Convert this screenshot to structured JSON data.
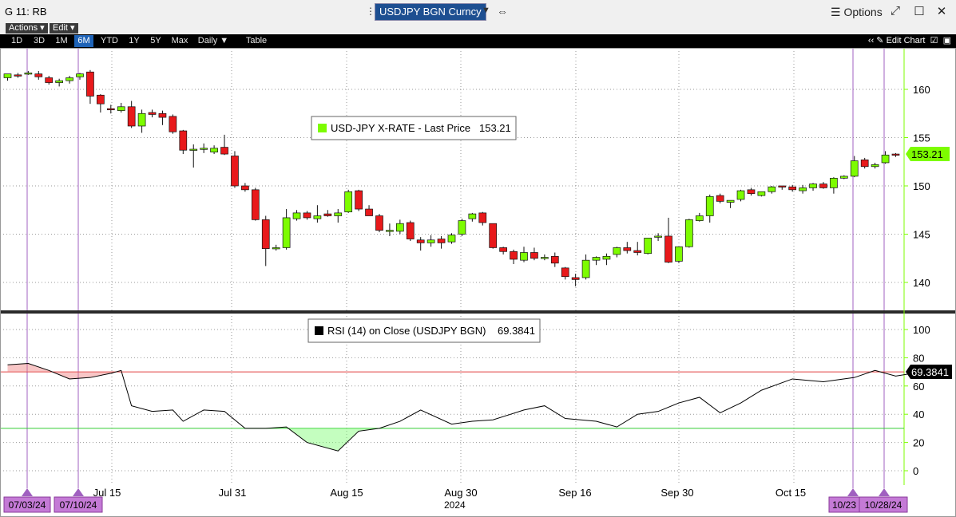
{
  "window": {
    "title": "G 11: RB",
    "ticker": "USDJPY BGN Curncy",
    "options_label": "Options"
  },
  "menu": {
    "actions_label": "Actions ▾",
    "edit_label": "Edit ▾"
  },
  "toolbar": {
    "ranges": [
      "1D",
      "3D",
      "1M",
      "6M",
      "YTD",
      "1Y",
      "5Y",
      "Max"
    ],
    "active_range": "6M",
    "period_label": "Daily ▼",
    "table_label": "Table",
    "edit_chart_label": "Edit Chart"
  },
  "colors": {
    "up": "#7dfc00",
    "down": "#e8191b",
    "rsi_line": "#000000",
    "overbought": "#e04040",
    "oversold": "#33cc33",
    "event_line": "#a060c0"
  },
  "price_panel": {
    "legend_label": "USD-JPY X-RATE - Last Price",
    "legend_value": "153.21",
    "last_price_tag": "153.21",
    "y_ticks": [
      140,
      145,
      150,
      155,
      160
    ]
  },
  "rsi_panel": {
    "legend_label": "RSI (14) on Close (USDJPY BGN)",
    "legend_value": "69.3841",
    "last_value_tag": "69.3841",
    "y_ticks": [
      0,
      20,
      40,
      60,
      80,
      100
    ],
    "overbought": 70,
    "oversold": 30
  },
  "x_axis": {
    "labels": [
      "Jul 15",
      "Jul 31",
      "Aug 15",
      "Aug 30",
      "Sep 16",
      "Sep 30",
      "Oct 15"
    ],
    "year_label": "2024",
    "event_flags": [
      "07/03/24",
      "07/10/24",
      "10/23",
      "10/28/24"
    ]
  },
  "chart_data": {
    "type": "candlestick",
    "title": "USD-JPY X-RATE - Last Price",
    "ylim": [
      137,
      164
    ],
    "candles": [
      {
        "o": 161.2,
        "h": 161.6,
        "l": 160.9,
        "c": 161.6
      },
      {
        "o": 161.5,
        "h": 161.7,
        "l": 161.2,
        "c": 161.4
      },
      {
        "o": 161.6,
        "h": 161.9,
        "l": 161.5,
        "c": 161.7
      },
      {
        "o": 161.6,
        "h": 161.9,
        "l": 161.0,
        "c": 161.3
      },
      {
        "o": 161.2,
        "h": 161.4,
        "l": 160.5,
        "c": 160.7
      },
      {
        "o": 160.7,
        "h": 161.1,
        "l": 160.3,
        "c": 160.9
      },
      {
        "o": 160.9,
        "h": 161.4,
        "l": 160.6,
        "c": 161.2
      },
      {
        "o": 161.3,
        "h": 161.7,
        "l": 161.0,
        "c": 161.6
      },
      {
        "o": 161.8,
        "h": 162.0,
        "l": 158.5,
        "c": 159.3
      },
      {
        "o": 159.4,
        "h": 159.5,
        "l": 157.6,
        "c": 158.5
      },
      {
        "o": 158.0,
        "h": 158.4,
        "l": 157.5,
        "c": 157.9
      },
      {
        "o": 157.8,
        "h": 158.6,
        "l": 157.6,
        "c": 158.2
      },
      {
        "o": 158.2,
        "h": 158.8,
        "l": 156.0,
        "c": 156.2
      },
      {
        "o": 156.2,
        "h": 157.9,
        "l": 155.5,
        "c": 157.5
      },
      {
        "o": 157.6,
        "h": 157.9,
        "l": 157.1,
        "c": 157.4
      },
      {
        "o": 157.5,
        "h": 157.8,
        "l": 156.3,
        "c": 157.1
      },
      {
        "o": 157.2,
        "h": 157.4,
        "l": 155.4,
        "c": 155.6
      },
      {
        "o": 155.7,
        "h": 155.8,
        "l": 153.3,
        "c": 153.7
      },
      {
        "o": 153.7,
        "h": 154.3,
        "l": 151.9,
        "c": 153.8
      },
      {
        "o": 153.8,
        "h": 154.4,
        "l": 153.4,
        "c": 153.9
      },
      {
        "o": 153.5,
        "h": 154.2,
        "l": 153.3,
        "c": 153.9
      },
      {
        "o": 154.0,
        "h": 155.3,
        "l": 153.2,
        "c": 153.3
      },
      {
        "o": 153.1,
        "h": 153.6,
        "l": 149.8,
        "c": 150.0
      },
      {
        "o": 150.0,
        "h": 150.3,
        "l": 149.4,
        "c": 149.6
      },
      {
        "o": 149.6,
        "h": 149.8,
        "l": 146.4,
        "c": 146.5
      },
      {
        "o": 146.5,
        "h": 146.9,
        "l": 141.7,
        "c": 143.5
      },
      {
        "o": 143.5,
        "h": 143.9,
        "l": 143.3,
        "c": 143.6
      },
      {
        "o": 143.6,
        "h": 147.6,
        "l": 143.4,
        "c": 146.7
      },
      {
        "o": 146.6,
        "h": 147.5,
        "l": 146.4,
        "c": 147.2
      },
      {
        "o": 147.2,
        "h": 147.4,
        "l": 146.5,
        "c": 146.7
      },
      {
        "o": 146.6,
        "h": 148.0,
        "l": 146.2,
        "c": 146.9
      },
      {
        "o": 147.1,
        "h": 147.5,
        "l": 146.8,
        "c": 146.9
      },
      {
        "o": 146.9,
        "h": 147.6,
        "l": 146.2,
        "c": 147.2
      },
      {
        "o": 147.3,
        "h": 149.6,
        "l": 147.2,
        "c": 149.4
      },
      {
        "o": 149.5,
        "h": 149.6,
        "l": 147.4,
        "c": 147.6
      },
      {
        "o": 147.6,
        "h": 148.0,
        "l": 146.9,
        "c": 146.9
      },
      {
        "o": 146.9,
        "h": 147.1,
        "l": 145.2,
        "c": 145.4
      },
      {
        "o": 145.4,
        "h": 146.1,
        "l": 144.8,
        "c": 145.4
      },
      {
        "o": 145.3,
        "h": 146.5,
        "l": 145.0,
        "c": 146.1
      },
      {
        "o": 146.2,
        "h": 146.4,
        "l": 144.3,
        "c": 144.5
      },
      {
        "o": 144.4,
        "h": 144.7,
        "l": 143.3,
        "c": 144.1
      },
      {
        "o": 144.1,
        "h": 144.9,
        "l": 143.7,
        "c": 144.4
      },
      {
        "o": 144.5,
        "h": 144.8,
        "l": 143.5,
        "c": 144.1
      },
      {
        "o": 144.2,
        "h": 145.1,
        "l": 144.0,
        "c": 144.9
      },
      {
        "o": 145.0,
        "h": 146.6,
        "l": 144.8,
        "c": 146.4
      },
      {
        "o": 146.6,
        "h": 147.2,
        "l": 146.3,
        "c": 147.1
      },
      {
        "o": 147.2,
        "h": 147.3,
        "l": 145.9,
        "c": 146.2
      },
      {
        "o": 146.1,
        "h": 146.1,
        "l": 143.5,
        "c": 143.6
      },
      {
        "o": 143.6,
        "h": 143.7,
        "l": 142.9,
        "c": 143.2
      },
      {
        "o": 143.2,
        "h": 143.4,
        "l": 141.9,
        "c": 142.4
      },
      {
        "o": 142.3,
        "h": 143.7,
        "l": 142.1,
        "c": 143.1
      },
      {
        "o": 143.1,
        "h": 143.6,
        "l": 142.3,
        "c": 142.5
      },
      {
        "o": 142.6,
        "h": 142.9,
        "l": 142.3,
        "c": 142.6
      },
      {
        "o": 142.7,
        "h": 143.1,
        "l": 141.6,
        "c": 142.0
      },
      {
        "o": 141.5,
        "h": 141.6,
        "l": 140.3,
        "c": 140.6
      },
      {
        "o": 140.5,
        "h": 140.9,
        "l": 139.6,
        "c": 140.3
      },
      {
        "o": 140.5,
        "h": 142.9,
        "l": 140.3,
        "c": 142.3
      },
      {
        "o": 142.3,
        "h": 142.7,
        "l": 141.8,
        "c": 142.6
      },
      {
        "o": 142.4,
        "h": 143.0,
        "l": 141.8,
        "c": 142.7
      },
      {
        "o": 142.9,
        "h": 143.7,
        "l": 142.6,
        "c": 143.6
      },
      {
        "o": 143.6,
        "h": 144.2,
        "l": 143.0,
        "c": 143.3
      },
      {
        "o": 143.3,
        "h": 144.2,
        "l": 142.8,
        "c": 143.1
      },
      {
        "o": 143.0,
        "h": 144.6,
        "l": 142.9,
        "c": 144.6
      },
      {
        "o": 144.7,
        "h": 145.1,
        "l": 144.3,
        "c": 144.8
      },
      {
        "o": 144.8,
        "h": 146.7,
        "l": 142.0,
        "c": 142.1
      },
      {
        "o": 142.2,
        "h": 143.7,
        "l": 142.0,
        "c": 143.7
      },
      {
        "o": 143.7,
        "h": 146.6,
        "l": 143.6,
        "c": 146.5
      },
      {
        "o": 146.4,
        "h": 147.2,
        "l": 146.3,
        "c": 146.9
      },
      {
        "o": 146.9,
        "h": 149.1,
        "l": 146.2,
        "c": 148.9
      },
      {
        "o": 149.0,
        "h": 149.2,
        "l": 148.2,
        "c": 148.4
      },
      {
        "o": 148.3,
        "h": 148.5,
        "l": 147.7,
        "c": 148.5
      },
      {
        "o": 148.6,
        "h": 149.6,
        "l": 148.4,
        "c": 149.5
      },
      {
        "o": 149.6,
        "h": 149.8,
        "l": 149.0,
        "c": 149.2
      },
      {
        "o": 149.0,
        "h": 149.4,
        "l": 148.9,
        "c": 149.4
      },
      {
        "o": 149.4,
        "h": 150.0,
        "l": 149.2,
        "c": 149.9
      },
      {
        "o": 150.0,
        "h": 150.0,
        "l": 149.6,
        "c": 149.9
      },
      {
        "o": 149.9,
        "h": 150.1,
        "l": 149.4,
        "c": 149.6
      },
      {
        "o": 149.5,
        "h": 150.1,
        "l": 149.2,
        "c": 149.8
      },
      {
        "o": 149.8,
        "h": 150.3,
        "l": 149.5,
        "c": 150.2
      },
      {
        "o": 150.2,
        "h": 150.4,
        "l": 149.7,
        "c": 149.8
      },
      {
        "o": 149.8,
        "h": 150.9,
        "l": 149.2,
        "c": 150.8
      },
      {
        "o": 150.8,
        "h": 151.1,
        "l": 150.7,
        "c": 151.0
      },
      {
        "o": 151.0,
        "h": 153.1,
        "l": 150.9,
        "c": 152.6
      },
      {
        "o": 152.7,
        "h": 152.9,
        "l": 151.8,
        "c": 152.0
      },
      {
        "o": 152.0,
        "h": 152.4,
        "l": 151.8,
        "c": 152.2
      },
      {
        "o": 152.4,
        "h": 153.6,
        "l": 152.3,
        "c": 153.2
      },
      {
        "o": 153.3,
        "h": 153.4,
        "l": 153.0,
        "c": 153.21
      }
    ],
    "rsi_x": [
      0,
      2,
      4,
      6,
      8,
      10,
      11,
      12,
      14,
      16,
      17,
      19,
      21,
      23,
      25,
      27,
      29,
      32,
      34,
      36,
      38,
      40,
      43,
      45,
      47,
      50,
      52,
      54,
      57,
      59,
      61,
      63,
      65,
      67,
      69,
      71,
      73,
      76,
      79,
      82,
      84,
      86,
      88
    ],
    "rsi": [
      75,
      76,
      71,
      65,
      66,
      69,
      71,
      46,
      42,
      43,
      35,
      43,
      42,
      30,
      30,
      31,
      20,
      14,
      28,
      30,
      35,
      43,
      33,
      35,
      36,
      43,
      46,
      37,
      35,
      31,
      40,
      42,
      48,
      52,
      41,
      48,
      57,
      65,
      63,
      66,
      71,
      67,
      69.38
    ]
  }
}
